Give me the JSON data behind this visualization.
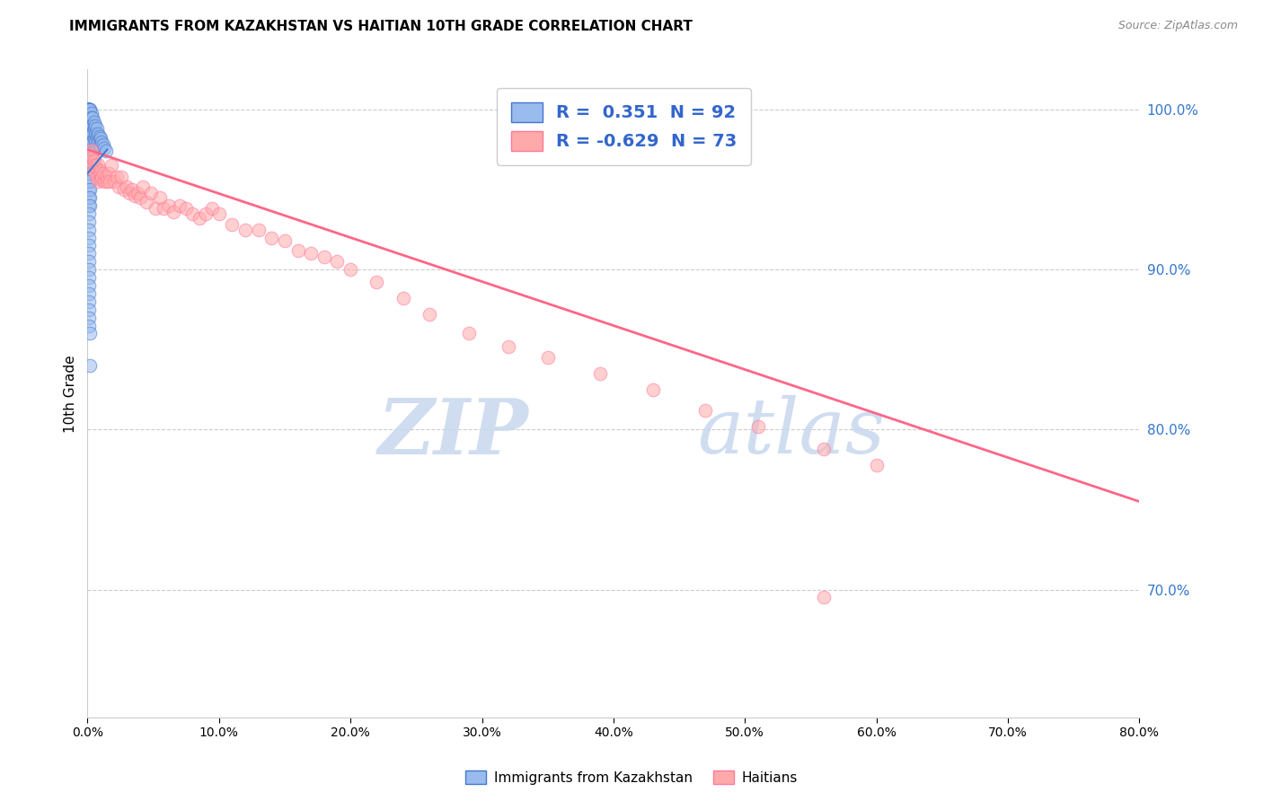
{
  "title": "IMMIGRANTS FROM KAZAKHSTAN VS HAITIAN 10TH GRADE CORRELATION CHART",
  "source": "Source: ZipAtlas.com",
  "ylabel": "10th Grade",
  "right_yticks": [
    "100.0%",
    "90.0%",
    "80.0%",
    "70.0%"
  ],
  "right_ytick_vals": [
    1.0,
    0.9,
    0.8,
    0.7
  ],
  "legend_r1": "R =  0.351  N = 92",
  "legend_r2": "R = -0.629  N = 73",
  "legend_label1": "Immigrants from Kazakhstan",
  "legend_label2": "Haitians",
  "blue_fill": "#99BBEE",
  "blue_edge": "#4477CC",
  "pink_fill": "#FFAAAA",
  "pink_edge": "#FF7799",
  "pink_line_color": "#FF6688",
  "blue_line_color": "#4477CC",
  "watermark_zip": "ZIP",
  "watermark_atlas": "atlas",
  "background_color": "#FFFFFF",
  "grid_color": "#CCCCCC",
  "xlim": [
    0.0,
    0.8
  ],
  "ylim": [
    0.62,
    1.025
  ],
  "blue_scatter_x": [
    0.001,
    0.001,
    0.001,
    0.001,
    0.001,
    0.001,
    0.001,
    0.001,
    0.001,
    0.001,
    0.001,
    0.001,
    0.001,
    0.001,
    0.001,
    0.001,
    0.001,
    0.001,
    0.001,
    0.001,
    0.001,
    0.001,
    0.001,
    0.001,
    0.001,
    0.001,
    0.001,
    0.001,
    0.001,
    0.001,
    0.002,
    0.002,
    0.002,
    0.002,
    0.002,
    0.002,
    0.002,
    0.002,
    0.002,
    0.002,
    0.002,
    0.002,
    0.002,
    0.002,
    0.003,
    0.003,
    0.003,
    0.003,
    0.003,
    0.003,
    0.003,
    0.004,
    0.004,
    0.004,
    0.004,
    0.005,
    0.005,
    0.005,
    0.005,
    0.006,
    0.006,
    0.006,
    0.007,
    0.007,
    0.007,
    0.008,
    0.008,
    0.009,
    0.009,
    0.01,
    0.01,
    0.011,
    0.012,
    0.013,
    0.014,
    0.001,
    0.001,
    0.001,
    0.001,
    0.001,
    0.001,
    0.001,
    0.001,
    0.001,
    0.001,
    0.001,
    0.001,
    0.001,
    0.001,
    0.001,
    0.002,
    0.002
  ],
  "blue_scatter_y": [
    1.0,
    1.0,
    1.0,
    1.0,
    1.0,
    1.0,
    1.0,
    1.0,
    1.0,
    1.0,
    1.0,
    1.0,
    1.0,
    1.0,
    1.0,
    1.0,
    1.0,
    1.0,
    0.995,
    0.99,
    0.985,
    0.98,
    0.975,
    0.97,
    0.965,
    0.96,
    0.955,
    0.95,
    0.945,
    0.94,
    1.0,
    1.0,
    0.995,
    0.99,
    0.985,
    0.98,
    0.975,
    0.97,
    0.965,
    0.96,
    0.955,
    0.95,
    0.945,
    0.94,
    0.998,
    0.995,
    0.99,
    0.985,
    0.98,
    0.975,
    0.97,
    0.995,
    0.99,
    0.985,
    0.98,
    0.992,
    0.988,
    0.982,
    0.975,
    0.99,
    0.985,
    0.98,
    0.988,
    0.983,
    0.978,
    0.985,
    0.98,
    0.983,
    0.978,
    0.982,
    0.977,
    0.98,
    0.978,
    0.976,
    0.974,
    0.935,
    0.93,
    0.925,
    0.92,
    0.915,
    0.91,
    0.905,
    0.9,
    0.895,
    0.89,
    0.885,
    0.88,
    0.875,
    0.87,
    0.865,
    0.86,
    0.84
  ],
  "pink_scatter_x": [
    0.002,
    0.003,
    0.003,
    0.004,
    0.004,
    0.005,
    0.005,
    0.006,
    0.006,
    0.007,
    0.007,
    0.008,
    0.008,
    0.009,
    0.01,
    0.01,
    0.011,
    0.012,
    0.013,
    0.014,
    0.015,
    0.016,
    0.017,
    0.018,
    0.02,
    0.022,
    0.024,
    0.026,
    0.028,
    0.03,
    0.032,
    0.034,
    0.036,
    0.038,
    0.04,
    0.042,
    0.045,
    0.048,
    0.052,
    0.055,
    0.058,
    0.062,
    0.065,
    0.07,
    0.075,
    0.08,
    0.085,
    0.09,
    0.095,
    0.1,
    0.11,
    0.12,
    0.13,
    0.14,
    0.15,
    0.16,
    0.17,
    0.18,
    0.19,
    0.2,
    0.22,
    0.24,
    0.26,
    0.29,
    0.32,
    0.35,
    0.39,
    0.43,
    0.47,
    0.51,
    0.56,
    0.6,
    0.56
  ],
  "pink_scatter_y": [
    0.972,
    0.975,
    0.968,
    0.97,
    0.965,
    0.968,
    0.962,
    0.965,
    0.96,
    0.963,
    0.958,
    0.966,
    0.955,
    0.96,
    0.962,
    0.956,
    0.958,
    0.96,
    0.955,
    0.958,
    0.955,
    0.96,
    0.955,
    0.965,
    0.955,
    0.958,
    0.952,
    0.958,
    0.95,
    0.952,
    0.948,
    0.95,
    0.946,
    0.948,
    0.945,
    0.952,
    0.942,
    0.948,
    0.938,
    0.945,
    0.938,
    0.94,
    0.936,
    0.94,
    0.938,
    0.935,
    0.932,
    0.935,
    0.938,
    0.935,
    0.928,
    0.925,
    0.925,
    0.92,
    0.918,
    0.912,
    0.91,
    0.908,
    0.905,
    0.9,
    0.892,
    0.882,
    0.872,
    0.86,
    0.852,
    0.845,
    0.835,
    0.825,
    0.812,
    0.802,
    0.788,
    0.778,
    0.695
  ],
  "pink_line_x": [
    0.0,
    0.8
  ],
  "pink_line_y": [
    0.975,
    0.755
  ],
  "blue_line_x": [
    0.0,
    0.015
  ],
  "blue_line_y": [
    0.96,
    0.975
  ]
}
